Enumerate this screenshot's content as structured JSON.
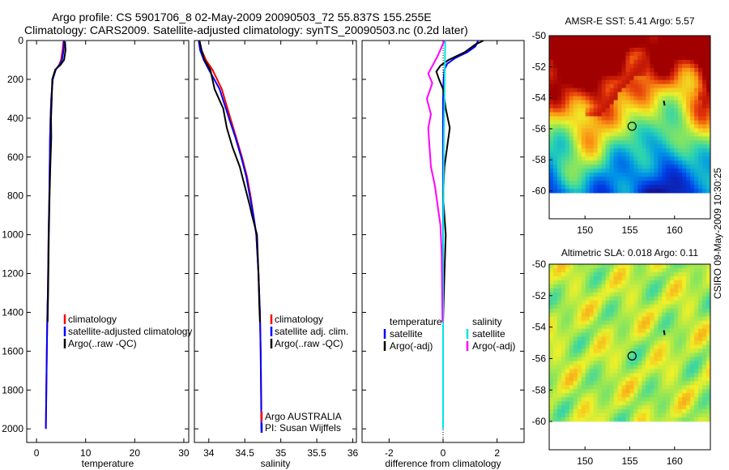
{
  "title": {
    "line1": "Argo profile: CS 5901706_8 02-May-2009 20090503_72 55.837S 155.255E",
    "line2": "Climatology: CARS2009. Satellite-adjusted climatology: synTS_20090503.nc (0.2d later)"
  },
  "colors": {
    "climatology": "#ff0000",
    "satellite": "#0000ff",
    "argo": "#000000",
    "satellite_salinity": "#00e5e5",
    "argo_adj_salinity": "#ff00ff"
  },
  "chart_data": [
    {
      "type": "line",
      "panel": "temperature",
      "xlabel": "temperature",
      "ylabel": "",
      "xlim": [
        -2,
        31
      ],
      "ylim": [
        2070,
        0
      ],
      "y_reversed": true,
      "xticks": [
        0,
        10,
        20,
        30
      ],
      "yticks": [
        0,
        200,
        400,
        600,
        800,
        1000,
        1200,
        1400,
        1600,
        1800,
        2000
      ],
      "legend": [
        "climatology",
        "satellite-adjusted climatology",
        "Argo(..raw -QC)"
      ],
      "series": [
        {
          "name": "climatology",
          "color": "#ff0000",
          "x": [
            5.5,
            5.3,
            5.0,
            4.6,
            3.9,
            3.3,
            3.0,
            2.85,
            2.75,
            2.7,
            2.6,
            2.45,
            2.35,
            2.3,
            2.2,
            2.1,
            2.0,
            1.95,
            1.9
          ],
          "y": [
            0,
            50,
            100,
            125,
            150,
            200,
            300,
            400,
            500,
            600,
            800,
            1000,
            1200,
            1300,
            1400,
            1600,
            1800,
            1900,
            2000
          ]
        },
        {
          "name": "satellite-adjusted climatology",
          "color": "#0000ff",
          "x": [
            5.6,
            5.5,
            5.2,
            4.7,
            3.9,
            3.3,
            3.0,
            2.85,
            2.75,
            2.7,
            2.6,
            2.45,
            2.35,
            2.3,
            2.2,
            2.1,
            2.0,
            1.95,
            1.9
          ],
          "y": [
            0,
            50,
            100,
            125,
            150,
            200,
            300,
            400,
            500,
            600,
            800,
            1000,
            1200,
            1300,
            1400,
            1600,
            1800,
            1900,
            2000
          ]
        },
        {
          "name": "Argo(..raw -QC)",
          "color": "#000000",
          "x": [
            5.8,
            5.9,
            5.6,
            4.9,
            3.8,
            3.2,
            3.1,
            2.95,
            3.0,
            2.8,
            2.65,
            2.5,
            2.4,
            2.35,
            2.25
          ],
          "y": [
            5,
            50,
            100,
            125,
            150,
            200,
            300,
            400,
            500,
            650,
            800,
            1000,
            1200,
            1300,
            1450
          ]
        }
      ]
    },
    {
      "type": "line",
      "panel": "salinity",
      "xlabel": "salinity",
      "ylabel": "",
      "xlim": [
        33.8,
        36.05
      ],
      "ylim": [
        2070,
        0
      ],
      "y_reversed": true,
      "xticks": [
        34,
        34.5,
        35,
        35.5,
        36
      ],
      "legend": [
        "climatology",
        "satellite adj. clim.",
        "Argo(..raw -QC)"
      ],
      "annotations": [
        "Argo AUSTRALIA",
        "PI: Susan Wijffels"
      ],
      "series": [
        {
          "name": "climatology",
          "color": "#ff0000",
          "x": [
            33.87,
            33.9,
            33.96,
            34.05,
            34.18,
            34.3,
            34.38,
            34.46,
            34.53,
            34.58,
            34.62,
            34.66,
            34.69,
            34.71,
            34.72,
            34.73
          ],
          "y": [
            0,
            50,
            100,
            150,
            250,
            400,
            500,
            600,
            700,
            800,
            900,
            1000,
            1200,
            1400,
            1600,
            1900
          ]
        },
        {
          "name": "satellite adj. clim.",
          "color": "#0000ff",
          "x": [
            33.86,
            33.88,
            33.93,
            34.0,
            34.15,
            34.28,
            34.37,
            34.45,
            34.52,
            34.57,
            34.62,
            34.66,
            34.69,
            34.71,
            34.72,
            34.73
          ],
          "y": [
            0,
            50,
            100,
            150,
            250,
            400,
            500,
            600,
            700,
            800,
            900,
            1000,
            1200,
            1400,
            1600,
            2000
          ]
        },
        {
          "name": "Argo(..raw -QC)",
          "color": "#000000",
          "x": [
            33.87,
            33.9,
            33.94,
            34.02,
            34.08,
            34.2,
            34.25,
            34.33,
            34.43,
            34.5,
            34.57,
            34.6,
            34.67,
            34.69,
            34.7,
            34.71
          ],
          "y": [
            0,
            50,
            100,
            150,
            250,
            350,
            450,
            550,
            650,
            750,
            850,
            900,
            1000,
            1200,
            1350,
            1450
          ]
        }
      ]
    },
    {
      "type": "line",
      "panel": "difference",
      "xlabel": "difference from climatology",
      "ylabel": "",
      "xlim": [
        -3,
        3
      ],
      "ylim": [
        2070,
        0
      ],
      "y_reversed": true,
      "xticks": [
        -2,
        0,
        2
      ],
      "legend_headers": [
        "temperature",
        "salinity"
      ],
      "legend": [
        "satellite",
        "Argo(-adj)",
        "satellite",
        "Argo(-adj)"
      ],
      "series": [
        {
          "name": "satellite",
          "group": "temperature",
          "color": "#0000ff",
          "x": [
            1.3,
            1.2,
            0.9,
            0.45,
            0.15,
            0.05,
            0.02,
            0,
            0,
            0,
            0,
            0,
            0,
            0
          ],
          "y": [
            0,
            30,
            60,
            90,
            120,
            150,
            200,
            300,
            500,
            800,
            1100,
            1400,
            1700,
            2000
          ]
        },
        {
          "name": "Argo(-adj)",
          "group": "temperature",
          "color": "#000000",
          "x": [
            1.5,
            1.2,
            0.8,
            0.2,
            -0.1,
            -0.25,
            -0.15,
            0.0,
            0.1,
            0.25,
            0.15,
            0.05,
            0.0,
            0.1,
            0.05,
            0.0
          ],
          "y": [
            0,
            20,
            60,
            100,
            130,
            160,
            200,
            250,
            350,
            450,
            550,
            650,
            800,
            1000,
            1200,
            1450
          ]
        },
        {
          "name": "satellite",
          "group": "salinity",
          "color": "#00e5e5",
          "x": [
            0.08,
            0.07,
            0.06,
            0.05,
            0.04,
            0.03,
            0.02,
            0.01,
            0.0,
            0.0,
            0.0
          ],
          "y": [
            0,
            100,
            200,
            300,
            400,
            500,
            700,
            900,
            1200,
            1600,
            2000
          ]
        },
        {
          "name": "Argo(-adj)",
          "group": "salinity",
          "color": "#ff00ff",
          "x": [
            0.05,
            -0.2,
            -0.55,
            -0.4,
            -0.6,
            -0.45,
            -0.55,
            -0.5,
            -0.45,
            -0.3,
            -0.2,
            -0.1,
            -0.05,
            -0.02
          ],
          "y": [
            0,
            80,
            170,
            220,
            300,
            380,
            450,
            550,
            650,
            750,
            850,
            950,
            1100,
            1450
          ]
        }
      ]
    },
    {
      "type": "heatmap",
      "panel": "sst-map",
      "title": "AMSR-E SST: 5.41 Argo: 5.57",
      "xlim": [
        146,
        164
      ],
      "ylim": [
        -61.8,
        -50
      ],
      "xticks": [
        150,
        155,
        160
      ],
      "yticks": [
        -50,
        -52,
        -54,
        -56,
        -58,
        -60
      ],
      "marker": {
        "lon": 155.255,
        "lat": -55.837
      }
    },
    {
      "type": "heatmap",
      "panel": "sla-map",
      "title": "Altimetric SLA: 0.018 Argo: 0.11",
      "xlim": [
        146,
        164
      ],
      "ylim": [
        -61.8,
        -50
      ],
      "xticks": [
        150,
        155,
        160
      ],
      "yticks": [
        -50,
        -52,
        -54,
        -56,
        -58,
        -60
      ],
      "marker": {
        "lon": 155.255,
        "lat": -55.837
      }
    }
  ],
  "stamp": "CSIRO 09-May-2009 10:30:25"
}
